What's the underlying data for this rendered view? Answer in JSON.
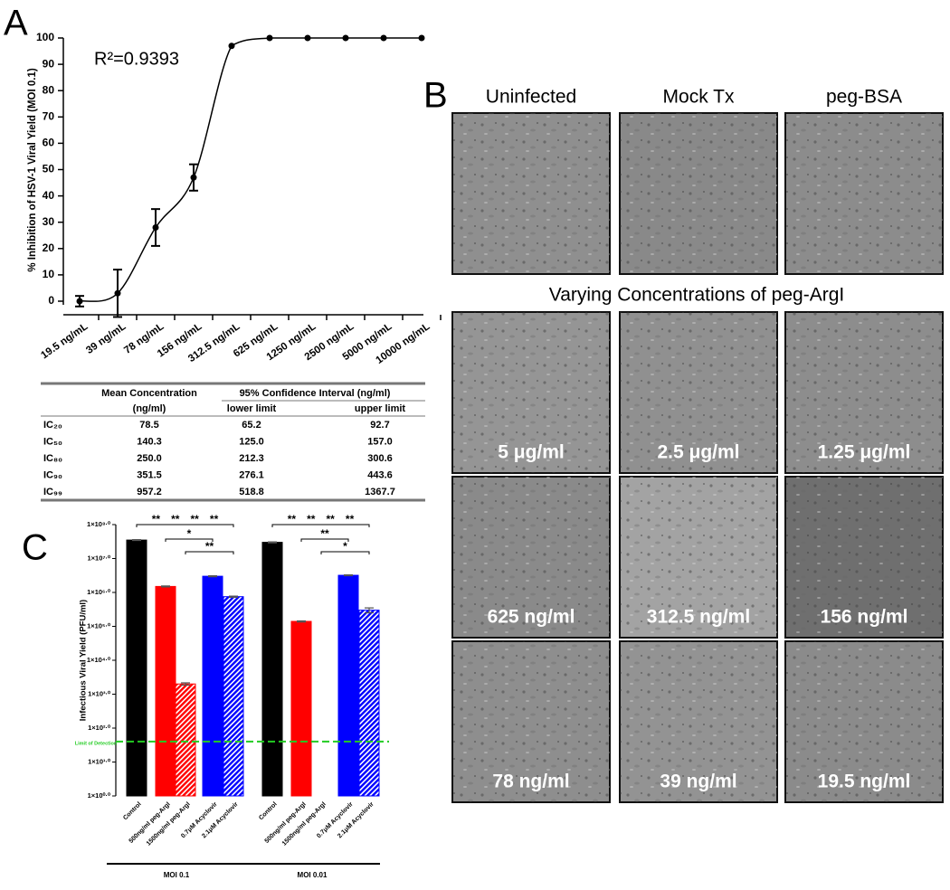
{
  "panel_labels": [
    "A",
    "B",
    "C"
  ],
  "chart_data": [
    {
      "type": "line",
      "annotation": "R²=0.9393",
      "y_label": "% Inhibition of HSV-1 Viral Yield (MOI 0.1)",
      "categories": [
        "19.5 ng/mL",
        "39 ng/mL",
        "78 ng/mL",
        "156 ng/mL",
        "312.5 ng/mL",
        "625 ng/mL",
        "1250 ng/mL",
        "2500 ng/mL",
        "5000 ng/mL",
        "10000 ng/mL"
      ],
      "values": [
        0,
        3,
        28,
        47,
        97,
        100,
        100,
        100,
        100,
        100
      ],
      "errors": [
        2,
        9,
        7,
        5,
        0,
        0,
        0,
        0,
        0,
        0
      ],
      "color": "#000000",
      "ylim": [
        0,
        100
      ],
      "yticks": [
        0,
        10,
        20,
        30,
        40,
        50,
        60,
        70,
        80,
        90,
        100
      ]
    },
    {
      "type": "bar",
      "y_label": "Infectious Viral Yield (PFU/ml)",
      "log_scale": true,
      "categories": [
        "MOI 0.1",
        "MOI 0.01"
      ],
      "series": [
        {
          "name": "Control",
          "color": "#000000",
          "hatched": false,
          "values": [
            35000000,
            30000000
          ],
          "errors": [
            1000000,
            1000000
          ]
        },
        {
          "name": "500ng/ml peg-ArgI",
          "color": "#ff0000",
          "hatched": false,
          "values": [
            1500000,
            140000
          ],
          "errors": [
            50000,
            5000
          ]
        },
        {
          "name": "1500ng/ml peg-ArgI",
          "color": "#ff0000",
          "hatched": true,
          "values": [
            2000,
            null
          ],
          "errors": [
            150,
            null
          ]
        },
        {
          "name": "0.7μM Acyclovir",
          "color": "#0000ff",
          "hatched": false,
          "values": [
            3000000,
            3200000
          ],
          "errors": [
            100000,
            100000
          ]
        },
        {
          "name": "2.1μM Acyclovir",
          "color": "#0000ff",
          "hatched": true,
          "values": [
            750000,
            300000
          ],
          "errors": [
            30000,
            50000
          ]
        }
      ],
      "reference_line": {
        "value": 40,
        "label": "Limit of Detection",
        "color": "#22cc22"
      },
      "significance": [
        [
          [
            "**",
            "**",
            "**",
            "**"
          ],
          [
            "*"
          ],
          [
            "**"
          ]
        ],
        [
          [
            "**",
            "**",
            "**",
            "**"
          ],
          [
            "**"
          ],
          [
            "*"
          ]
        ]
      ],
      "ylim": [
        1,
        100000000
      ],
      "yticks": [
        {
          "value": 1,
          "label": "1×10⁰·⁰"
        },
        {
          "value": 10,
          "label": "1×10¹·⁰"
        },
        {
          "value": 100,
          "label": "1×10²·⁰"
        },
        {
          "value": 1000,
          "label": "1×10³·⁰"
        },
        {
          "value": 10000,
          "label": "1×10⁴·⁰"
        },
        {
          "value": 100000,
          "label": "1×10⁵·⁰"
        },
        {
          "value": 1000000,
          "label": "1×10⁶·⁰"
        },
        {
          "value": 10000000,
          "label": "1×10⁷·⁰"
        },
        {
          "value": 100000000,
          "label": "1×10⁸·⁰"
        }
      ]
    }
  ],
  "table": {
    "header": [
      [
        "Mean Concentration",
        "95% Confidence Interval (ng/ml)"
      ],
      [
        "(ng/ml)",
        "lower limit",
        "upper limit"
      ]
    ],
    "rows": [
      [
        "IC₂₀",
        "78.5",
        "65.2",
        "92.7"
      ],
      [
        "IC₅₀",
        "140.3",
        "125.0",
        "157.0"
      ],
      [
        "IC₈₀",
        "250.0",
        "212.3",
        "300.6"
      ],
      [
        "IC₉₀",
        "351.5",
        "276.1",
        "443.6"
      ],
      [
        "IC₉₉",
        "957.2",
        "518.8",
        "1367.7"
      ]
    ]
  },
  "images": {
    "column_titles": [
      "Uninfected",
      "Mock Tx",
      "peg-BSA"
    ],
    "section_title": "Varying Concentrations of peg-ArgI",
    "labels": [
      "5 μg/ml",
      "2.5 μg/ml",
      "1.25 μg/ml",
      "625 ng/ml",
      "312.5 ng/ml",
      "156 ng/ml",
      "78 ng/ml",
      "39 ng/ml",
      "19.5 ng/ml"
    ]
  }
}
